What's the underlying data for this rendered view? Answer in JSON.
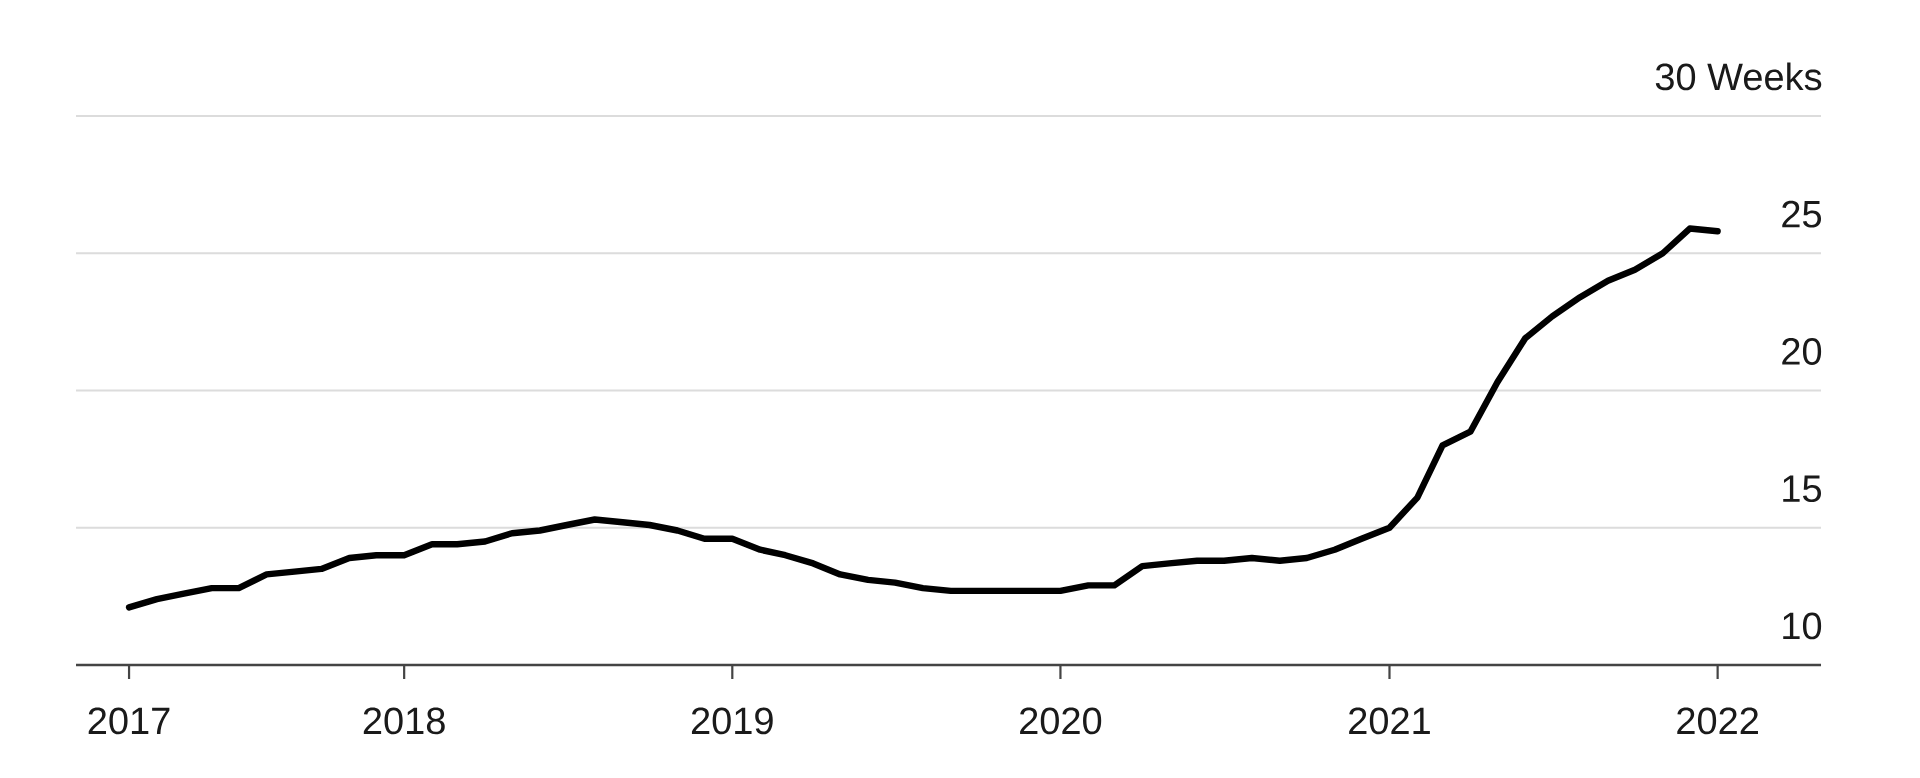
{
  "chart_data": {
    "type": "line",
    "x": [
      "2017-03",
      "2017-04",
      "2017-05",
      "2017-06",
      "2017-07",
      "2017-08",
      "2017-09",
      "2017-10",
      "2017-11",
      "2017-12",
      "2018-01",
      "2018-02",
      "2018-03",
      "2018-04",
      "2018-05",
      "2018-06",
      "2018-07",
      "2018-08",
      "2018-09",
      "2018-10",
      "2018-11",
      "2018-12",
      "2019-01",
      "2019-02",
      "2019-03",
      "2019-04",
      "2019-05",
      "2019-06",
      "2019-07",
      "2019-08",
      "2019-09",
      "2019-10",
      "2019-11",
      "2019-12",
      "2020-01",
      "2020-02",
      "2020-03",
      "2020-04",
      "2020-05",
      "2020-06",
      "2020-07",
      "2020-08",
      "2020-09",
      "2020-10",
      "2020-11",
      "2020-12",
      "2021-01",
      "2021-02",
      "2021-03",
      "2021-04",
      "2021-05",
      "2021-06",
      "2021-07",
      "2021-08",
      "2021-09",
      "2021-10",
      "2021-11",
      "2021-12",
      "2022-01"
    ],
    "series": [
      {
        "color": "#000000",
        "values": [
          12.1,
          12.4,
          12.6,
          12.8,
          12.8,
          13.3,
          13.4,
          13.5,
          13.9,
          14.0,
          14.0,
          14.4,
          14.4,
          14.5,
          14.8,
          14.9,
          15.1,
          15.3,
          15.2,
          15.1,
          14.9,
          14.6,
          14.6,
          14.2,
          14.0,
          13.7,
          13.3,
          13.1,
          13.0,
          12.8,
          12.7,
          12.7,
          12.7,
          12.7,
          12.7,
          12.9,
          12.9,
          13.6,
          13.7,
          13.8,
          13.8,
          13.9,
          13.8,
          13.9,
          14.2,
          14.6,
          15.0,
          16.1,
          18.0,
          18.5,
          20.3,
          21.9,
          22.7,
          23.4,
          24.0,
          24.4,
          25.0,
          25.9,
          25.8
        ]
      }
    ],
    "xlim": [
      "2017-01-01",
      "2022-04-26"
    ],
    "xticks": [
      {
        "value": "2017-03",
        "label": "2017"
      },
      {
        "value": "2018",
        "label": "2018"
      },
      {
        "value": "2019",
        "label": "2019"
      },
      {
        "value": "2020",
        "label": "2020"
      },
      {
        "value": "2021",
        "label": "2021"
      },
      {
        "value": "2022",
        "label": "2022"
      }
    ],
    "ylim": [
      10,
      30
    ],
    "yticks": [
      10,
      15,
      20,
      25,
      {
        "value": 30,
        "label": "30 Weeks"
      }
    ],
    "grid": "y",
    "marker": "none",
    "line_style": "solid"
  }
}
